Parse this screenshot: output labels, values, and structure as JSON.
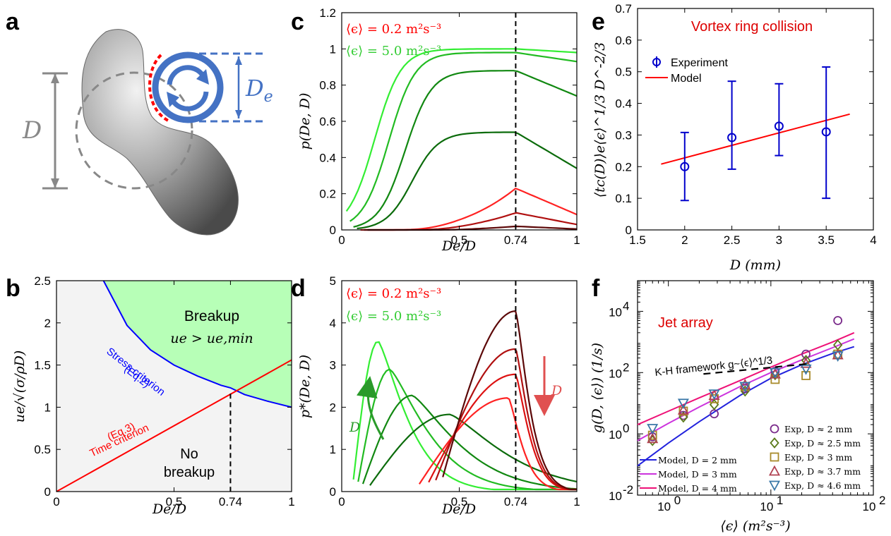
{
  "panels": {
    "a": "a",
    "b": "b",
    "c": "c",
    "d": "d",
    "e": "e",
    "f": "f"
  },
  "panel_a": {
    "d_label": "D",
    "de_label": "D",
    "de_sub": "e"
  },
  "colors": {
    "bubble": "#8c8c8c",
    "eddy": "#4472c4",
    "red": "#ff0000",
    "blue": "#0000ff",
    "green_fill": "#b7ffb7",
    "nobreak_fill": "#f3f3f3"
  },
  "chart_data": [
    {
      "id": "b",
      "type": "area",
      "xlabel": "De/D",
      "ylabel": "ue/√(σ/ρD)",
      "xlim": [
        0,
        1
      ],
      "ylim": [
        0,
        2.5
      ],
      "xticks": [
        "0",
        "0.5",
        "0.74",
        "1"
      ],
      "yticks": [
        "0",
        "0.5",
        "1",
        "1.5",
        "2",
        "2.5"
      ],
      "annotations": {
        "breakup": "Breakup",
        "breakup_cond": "ue > ue,min",
        "stress_1": "Stress criterion",
        "stress_2": "(Eq.2)",
        "time_1": "(Eq.3)",
        "time_2": "Time criterion",
        "nobreak_1": "No",
        "nobreak_2": "breakup"
      },
      "series": [
        {
          "name": "Stress criterion",
          "x": [
            0.2,
            0.3,
            0.4,
            0.5,
            0.6,
            0.7,
            0.74,
            0.8,
            0.9,
            1.0
          ],
          "y": [
            2.5,
            1.97,
            1.68,
            1.5,
            1.37,
            1.26,
            1.23,
            1.15,
            1.07,
            1.0
          ]
        },
        {
          "name": "Time criterion",
          "x": [
            0,
            1
          ],
          "y": [
            0,
            1.56
          ]
        }
      ],
      "vline": 0.74
    },
    {
      "id": "c",
      "type": "line",
      "xlabel": "De/D",
      "ylabel": "p(De, D)",
      "xlim": [
        0,
        1
      ],
      "ylim": [
        0,
        1.2
      ],
      "xticks": [
        "0",
        "0.5",
        "0.74",
        "1"
      ],
      "yticks": [
        "0",
        "0.2",
        "0.4",
        "0.6",
        "0.8",
        "1",
        "1.2"
      ],
      "legend": [
        "⟨ϵ⟩ = 0.2 m²s⁻³",
        "⟨ϵ⟩ = 5.0 m²s⁻³"
      ],
      "peaks": [
        1.0,
        0.98,
        0.88,
        0.54,
        0.23,
        0.095,
        0.02
      ],
      "ends": [
        0.98,
        0.93,
        0.74,
        0.34,
        0.085,
        0.03,
        0.005
      ],
      "onsets": [
        0.14,
        0.2,
        0.27,
        0.3,
        0.35,
        0.42,
        0.5
      ],
      "colors": [
        "#33ee33",
        "#22bb22",
        "#118811",
        "#0b6b0b",
        "#ff2222",
        "#b01010",
        "#5c0808"
      ],
      "vline": 0.74
    },
    {
      "id": "d",
      "type": "line",
      "xlabel": "De/D",
      "ylabel": "p*(De, D)",
      "xlim": [
        0,
        1
      ],
      "ylim": [
        0,
        5
      ],
      "xticks": [
        "0",
        "0.5",
        "0.74",
        "1"
      ],
      "yticks": [
        "0",
        "1",
        "2",
        "3",
        "4",
        "5"
      ],
      "legend": [
        "⟨ϵ⟩ = 0.2 m²s⁻³",
        "⟨ϵ⟩ = 5.0 m²s⁻³"
      ],
      "curves": [
        {
          "peak_x": 0.155,
          "peak_y": 3.57,
          "start": 0.05,
          "color": "#33ee33"
        },
        {
          "peak_x": 0.205,
          "peak_y": 2.9,
          "start": 0.07,
          "color": "#22bb22"
        },
        {
          "peak_x": 0.3,
          "peak_y": 2.28,
          "start": 0.09,
          "color": "#118811"
        },
        {
          "peak_x": 0.46,
          "peak_y": 1.83,
          "start": 0.12,
          "color": "#0b6b0b"
        },
        {
          "peak_x": 0.71,
          "peak_y": 2.22,
          "start": 0.33,
          "color": "#ff2222"
        },
        {
          "peak_x": 0.74,
          "peak_y": 2.78,
          "start": 0.37,
          "color": "#dd1111"
        },
        {
          "peak_x": 0.74,
          "peak_y": 3.38,
          "start": 0.4,
          "color": "#b01010"
        },
        {
          "peak_x": 0.74,
          "peak_y": 4.28,
          "start": 0.43,
          "color": "#5c0808"
        }
      ],
      "arrow_label": "D",
      "vline": 0.74
    },
    {
      "id": "e",
      "type": "scatter",
      "title": "Vortex ring collision",
      "xlabel": "D (mm)",
      "ylabel": "⟨tc(D)⟩e⟨ϵ⟩^1/3 D^-2/3",
      "xlim": [
        1.5,
        4
      ],
      "ylim": [
        0,
        0.7
      ],
      "xticks": [
        "1.5",
        "2",
        "2.5",
        "3",
        "3.5",
        "4"
      ],
      "yticks": [
        "0",
        "0.1",
        "0.2",
        "0.3",
        "0.4",
        "0.5",
        "0.6",
        "0.7"
      ],
      "series": [
        {
          "name": "Experiment",
          "x": [
            2,
            2.5,
            3,
            3.5
          ],
          "y": [
            0.2,
            0.292,
            0.328,
            0.31
          ],
          "ylo": [
            0.093,
            0.192,
            0.235,
            0.1
          ],
          "yhi": [
            0.308,
            0.47,
            0.462,
            0.515
          ]
        },
        {
          "name": "Model",
          "x": [
            1.75,
            3.75
          ],
          "y": [
            0.208,
            0.366
          ]
        }
      ]
    },
    {
      "id": "f",
      "type": "scatter",
      "title": "Jet array",
      "annotation": "K-H framework g~⟨ϵ⟩^1/3",
      "xlabel": "⟨ϵ⟩ (m²s⁻³)",
      "ylabel": "g(D, ⟨ϵ⟩) (1/s)",
      "xscale": "log",
      "yscale": "log",
      "xlim": [
        0.5,
        100
      ],
      "ylim": [
        0.01,
        100000
      ],
      "xticks": [
        "10^0",
        "10^1",
        "10^2"
      ],
      "yticks": [
        "10^-2",
        "10^0",
        "10^2",
        "10^4"
      ],
      "models": [
        {
          "name": "Model, D = 2 mm",
          "color": "#2222dd",
          "x": [
            0.5,
            1,
            2,
            5,
            10,
            20,
            40,
            65
          ],
          "y": [
            0.09,
            0.5,
            2.5,
            18,
            65,
            180,
            420,
            700
          ]
        },
        {
          "name": "Model, D = 3 mm",
          "color": "#cc33dd",
          "x": [
            0.5,
            1,
            2,
            5,
            10,
            20,
            40,
            65
          ],
          "y": [
            0.6,
            2.2,
            7.5,
            35,
            100,
            260,
            650,
            1250
          ]
        },
        {
          "name": "Model, D = 4 mm",
          "color": "#ee1177",
          "x": [
            0.5,
            1,
            2,
            5,
            10,
            20,
            40,
            65
          ],
          "y": [
            2.0,
            5.5,
            15,
            55,
            150,
            400,
            1000,
            2000
          ]
        }
      ],
      "experiments": [
        {
          "name": "Exp, D ≈ 2 mm",
          "marker": "circle",
          "color": "#7a2a8a",
          "x": [
            0.7,
            1.4,
            2.8,
            5.6,
            11,
            22,
            45
          ],
          "y": [
            0.8,
            4,
            4.5,
            30,
            110,
            400,
            5000
          ]
        },
        {
          "name": "Exp, D ≈ 2.5 mm",
          "marker": "diamond",
          "color": "#5a7a1a",
          "x": [
            0.7,
            1.4,
            2.8,
            5.6,
            11,
            22,
            45
          ],
          "y": [
            0.6,
            3.5,
            9,
            25,
            85,
            250,
            800
          ]
        },
        {
          "name": "Exp, D ≈ 3 mm",
          "marker": "square",
          "color": "#a88a2a",
          "x": [
            0.7,
            1.4,
            2.8,
            5.6,
            11,
            22,
            45
          ],
          "y": [
            0.9,
            5.5,
            14,
            35,
            60,
            80,
            400
          ]
        },
        {
          "name": "Exp, D ≈ 3.7 mm",
          "marker": "triangle-up",
          "color": "#b04050",
          "x": [
            0.7,
            1.4,
            2.8,
            5.6,
            11,
            22,
            45
          ],
          "y": [
            0.7,
            6,
            18,
            40,
            90,
            200,
            380
          ]
        },
        {
          "name": "Exp, D ≈ 4.6 mm",
          "marker": "triangle-down",
          "color": "#3a78a8",
          "x": [
            0.7,
            1.4,
            2.8,
            5.6,
            11,
            22,
            45
          ],
          "y": [
            1.5,
            10,
            20,
            35,
            100,
            130,
            350
          ]
        }
      ],
      "kh_line": {
        "x": [
          2.2,
          22
        ],
        "y": [
          90,
          190
        ]
      }
    }
  ]
}
